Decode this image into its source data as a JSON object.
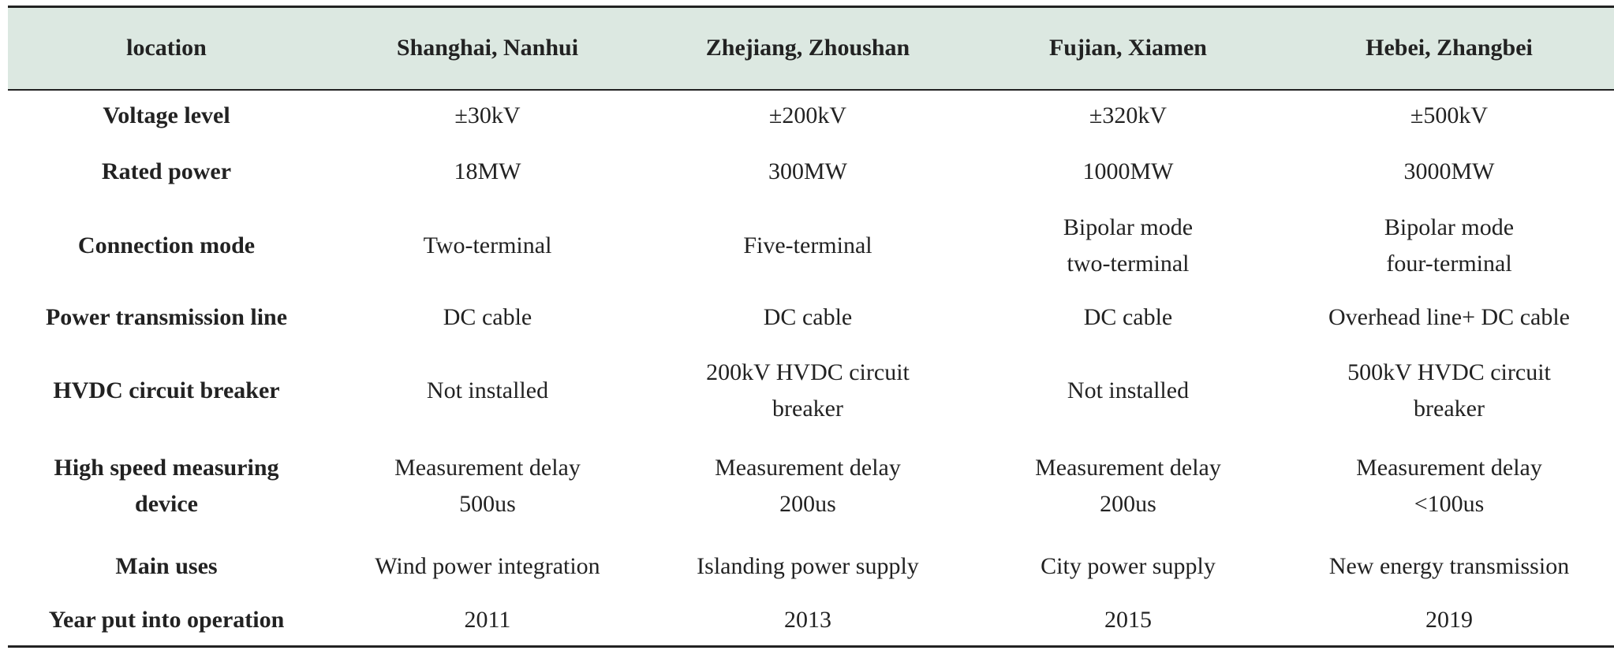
{
  "table": {
    "header": [
      "location",
      "Shanghai, Nanhui",
      "Zhejiang, Zhoushan",
      "Fujian, Xiamen",
      "Hebei, Zhangbei"
    ],
    "rows": [
      [
        "Voltage level",
        "±30kV",
        "±200kV",
        "±320kV",
        "±500kV"
      ],
      [
        "Rated power",
        "18MW",
        "300MW",
        "1000MW",
        "3000MW"
      ],
      [
        "Connection mode",
        "Two-terminal",
        "Five-terminal",
        "Bipolar mode\ntwo-terminal",
        "Bipolar mode\nfour-terminal"
      ],
      [
        "Power transmission line",
        "DC cable",
        "DC cable",
        "DC cable",
        "Overhead line+ DC cable"
      ],
      [
        "HVDC circuit breaker",
        "Not installed",
        "200kV HVDC circuit\nbreaker",
        "Not installed",
        "500kV HVDC circuit\nbreaker"
      ],
      [
        "High speed measuring\ndevice",
        "Measurement delay\n500us",
        "Measurement delay\n200us",
        "Measurement delay\n200us",
        "Measurement delay\n<100us"
      ],
      [
        "Main uses",
        "Wind power integration",
        "Islanding power supply",
        "City power supply",
        "New energy transmission"
      ],
      [
        "Year put into operation",
        "2011",
        "2013",
        "2015",
        "2019"
      ]
    ]
  }
}
